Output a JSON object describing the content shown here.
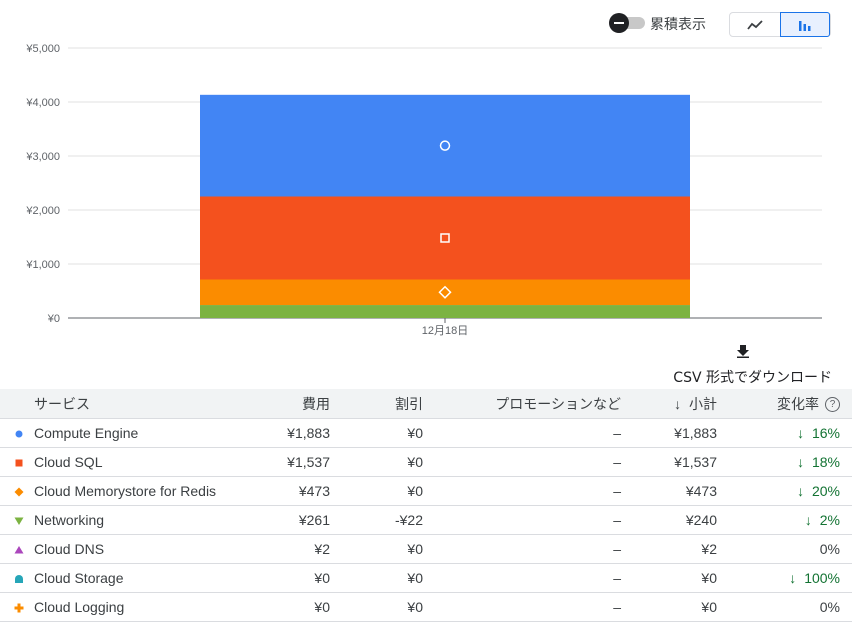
{
  "toolbar": {
    "cumulative_label": "累積表示",
    "line_view_icon": "line-chart-icon",
    "bar_view_icon": "bar-chart-icon"
  },
  "chart_data": {
    "type": "bar",
    "stacked": true,
    "categories": [
      "12月18日"
    ],
    "ylim": [
      0,
      5000
    ],
    "yticks": [
      "¥5,000",
      "¥4,000",
      "¥3,000",
      "¥2,000",
      "¥1,000",
      "¥0"
    ],
    "ytick_values": [
      5000,
      4000,
      3000,
      2000,
      1000,
      0
    ],
    "grid": true,
    "series": [
      {
        "name": "Networking",
        "values": [
          240
        ],
        "color": "#7cb342",
        "marker": "none"
      },
      {
        "name": "Cloud Memorystore for Redis",
        "values": [
          473
        ],
        "color": "#fb8c00",
        "marker": "diamond"
      },
      {
        "name": "Cloud SQL",
        "values": [
          1537
        ],
        "color": "#f4511e",
        "marker": "square"
      },
      {
        "name": "Compute Engine",
        "values": [
          1883
        ],
        "color": "#4285f4",
        "marker": "circle"
      }
    ]
  },
  "csv": {
    "label": "CSV 形式でダウンロード",
    "icon": "download-icon"
  },
  "table": {
    "headers": {
      "service": "サービス",
      "cost": "費用",
      "discount": "割引",
      "promotions": "プロモーションなど",
      "subtotal": "小計",
      "change": "変化率"
    },
    "rows": [
      {
        "marker": "circle",
        "color": "#4285f4",
        "service": "Compute Engine",
        "cost": "¥1,883",
        "discount": "¥0",
        "promotions": "–",
        "subtotal": "¥1,883",
        "change": "16%",
        "change_down": true
      },
      {
        "marker": "square",
        "color": "#f4511e",
        "service": "Cloud SQL",
        "cost": "¥1,537",
        "discount": "¥0",
        "promotions": "–",
        "subtotal": "¥1,537",
        "change": "18%",
        "change_down": true
      },
      {
        "marker": "diamond",
        "color": "#fb8c00",
        "service": "Cloud Memorystore for Redis",
        "cost": "¥473",
        "discount": "¥0",
        "promotions": "–",
        "subtotal": "¥473",
        "change": "20%",
        "change_down": true
      },
      {
        "marker": "triangle-down",
        "color": "#7cb342",
        "service": "Networking",
        "cost": "¥261",
        "discount": "-¥22",
        "promotions": "–",
        "subtotal": "¥240",
        "change": "2%",
        "change_down": true
      },
      {
        "marker": "triangle-up",
        "color": "#ab47bc",
        "service": "Cloud DNS",
        "cost": "¥2",
        "discount": "¥0",
        "promotions": "–",
        "subtotal": "¥2",
        "change": "0%",
        "change_down": false
      },
      {
        "marker": "dome",
        "color": "#26a6b8",
        "service": "Cloud Storage",
        "cost": "¥0",
        "discount": "¥0",
        "promotions": "–",
        "subtotal": "¥0",
        "change": "100%",
        "change_down": true
      },
      {
        "marker": "plus",
        "color": "#fb8c00",
        "service": "Cloud Logging",
        "cost": "¥0",
        "discount": "¥0",
        "promotions": "–",
        "subtotal": "¥0",
        "change": "0%",
        "change_down": false
      }
    ]
  }
}
